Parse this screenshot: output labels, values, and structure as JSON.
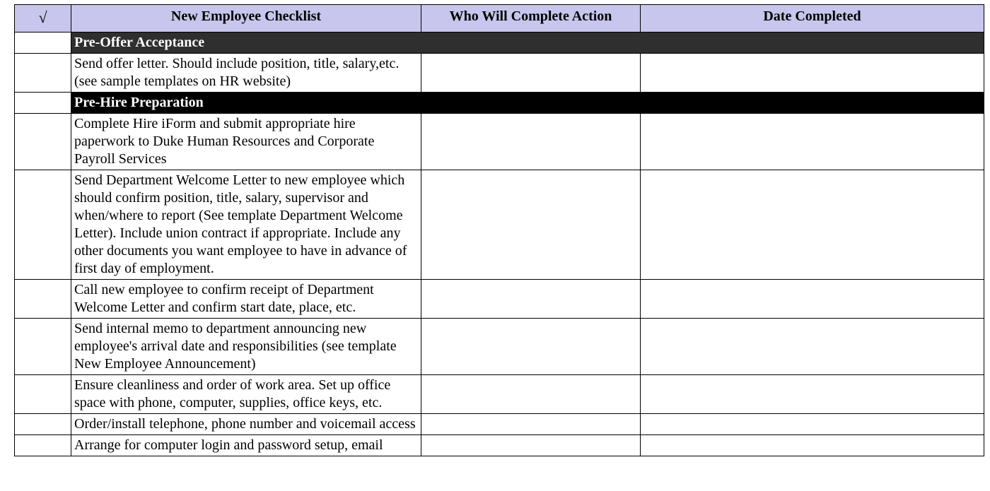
{
  "colors": {
    "header_bg": "#c8c6ec",
    "section1_bg": "#2f2f2f",
    "section2_bg": "#000000",
    "border": "#000000",
    "text": "#000000",
    "section_text": "#ffffff"
  },
  "header": {
    "check_symbol": "√",
    "task": "New Employee Checklist",
    "who": "Who Will Complete Action",
    "date": "Date Completed"
  },
  "sections": [
    {
      "title": "Pre-Offer Acceptance",
      "bg_key": "section1_bg",
      "rows": [
        {
          "task": "Send offer letter. Should include position, title, salary,etc. (see sample templates on HR website)",
          "who": "",
          "date": ""
        }
      ]
    },
    {
      "title": "Pre-Hire Preparation",
      "bg_key": "section2_bg",
      "rows": [
        {
          "task": "Complete Hire iForm and submit appropriate hire paperwork to Duke Human Resources and Corporate Payroll Services",
          "who": "",
          "date": ""
        },
        {
          "task": "Send Department Welcome Letter to new employee which should confirm position, title, salary, supervisor and when/where to report (See template Department Welcome Letter). Include union contract if appropriate. Include any other documents you want employee to have in advance of first day of employment.",
          "who": "",
          "date": ""
        },
        {
          "task": "Call new employee to confirm receipt of Department Welcome Letter and confirm start date, place, etc.",
          "who": "",
          "date": ""
        },
        {
          "task": "Send internal memo to department announcing new employee's arrival date and responsibilities (see template New Employee Announcement)",
          "who": "",
          "date": ""
        },
        {
          "task": "Ensure cleanliness and order of work area. Set up office space with phone, computer, supplies, office keys, etc.",
          "who": "",
          "date": ""
        },
        {
          "task": "Order/install telephone, phone number and voicemail access",
          "who": "",
          "date": ""
        },
        {
          "task": "Arrange for computer login and password setup, email",
          "who": "",
          "date": ""
        }
      ]
    }
  ]
}
